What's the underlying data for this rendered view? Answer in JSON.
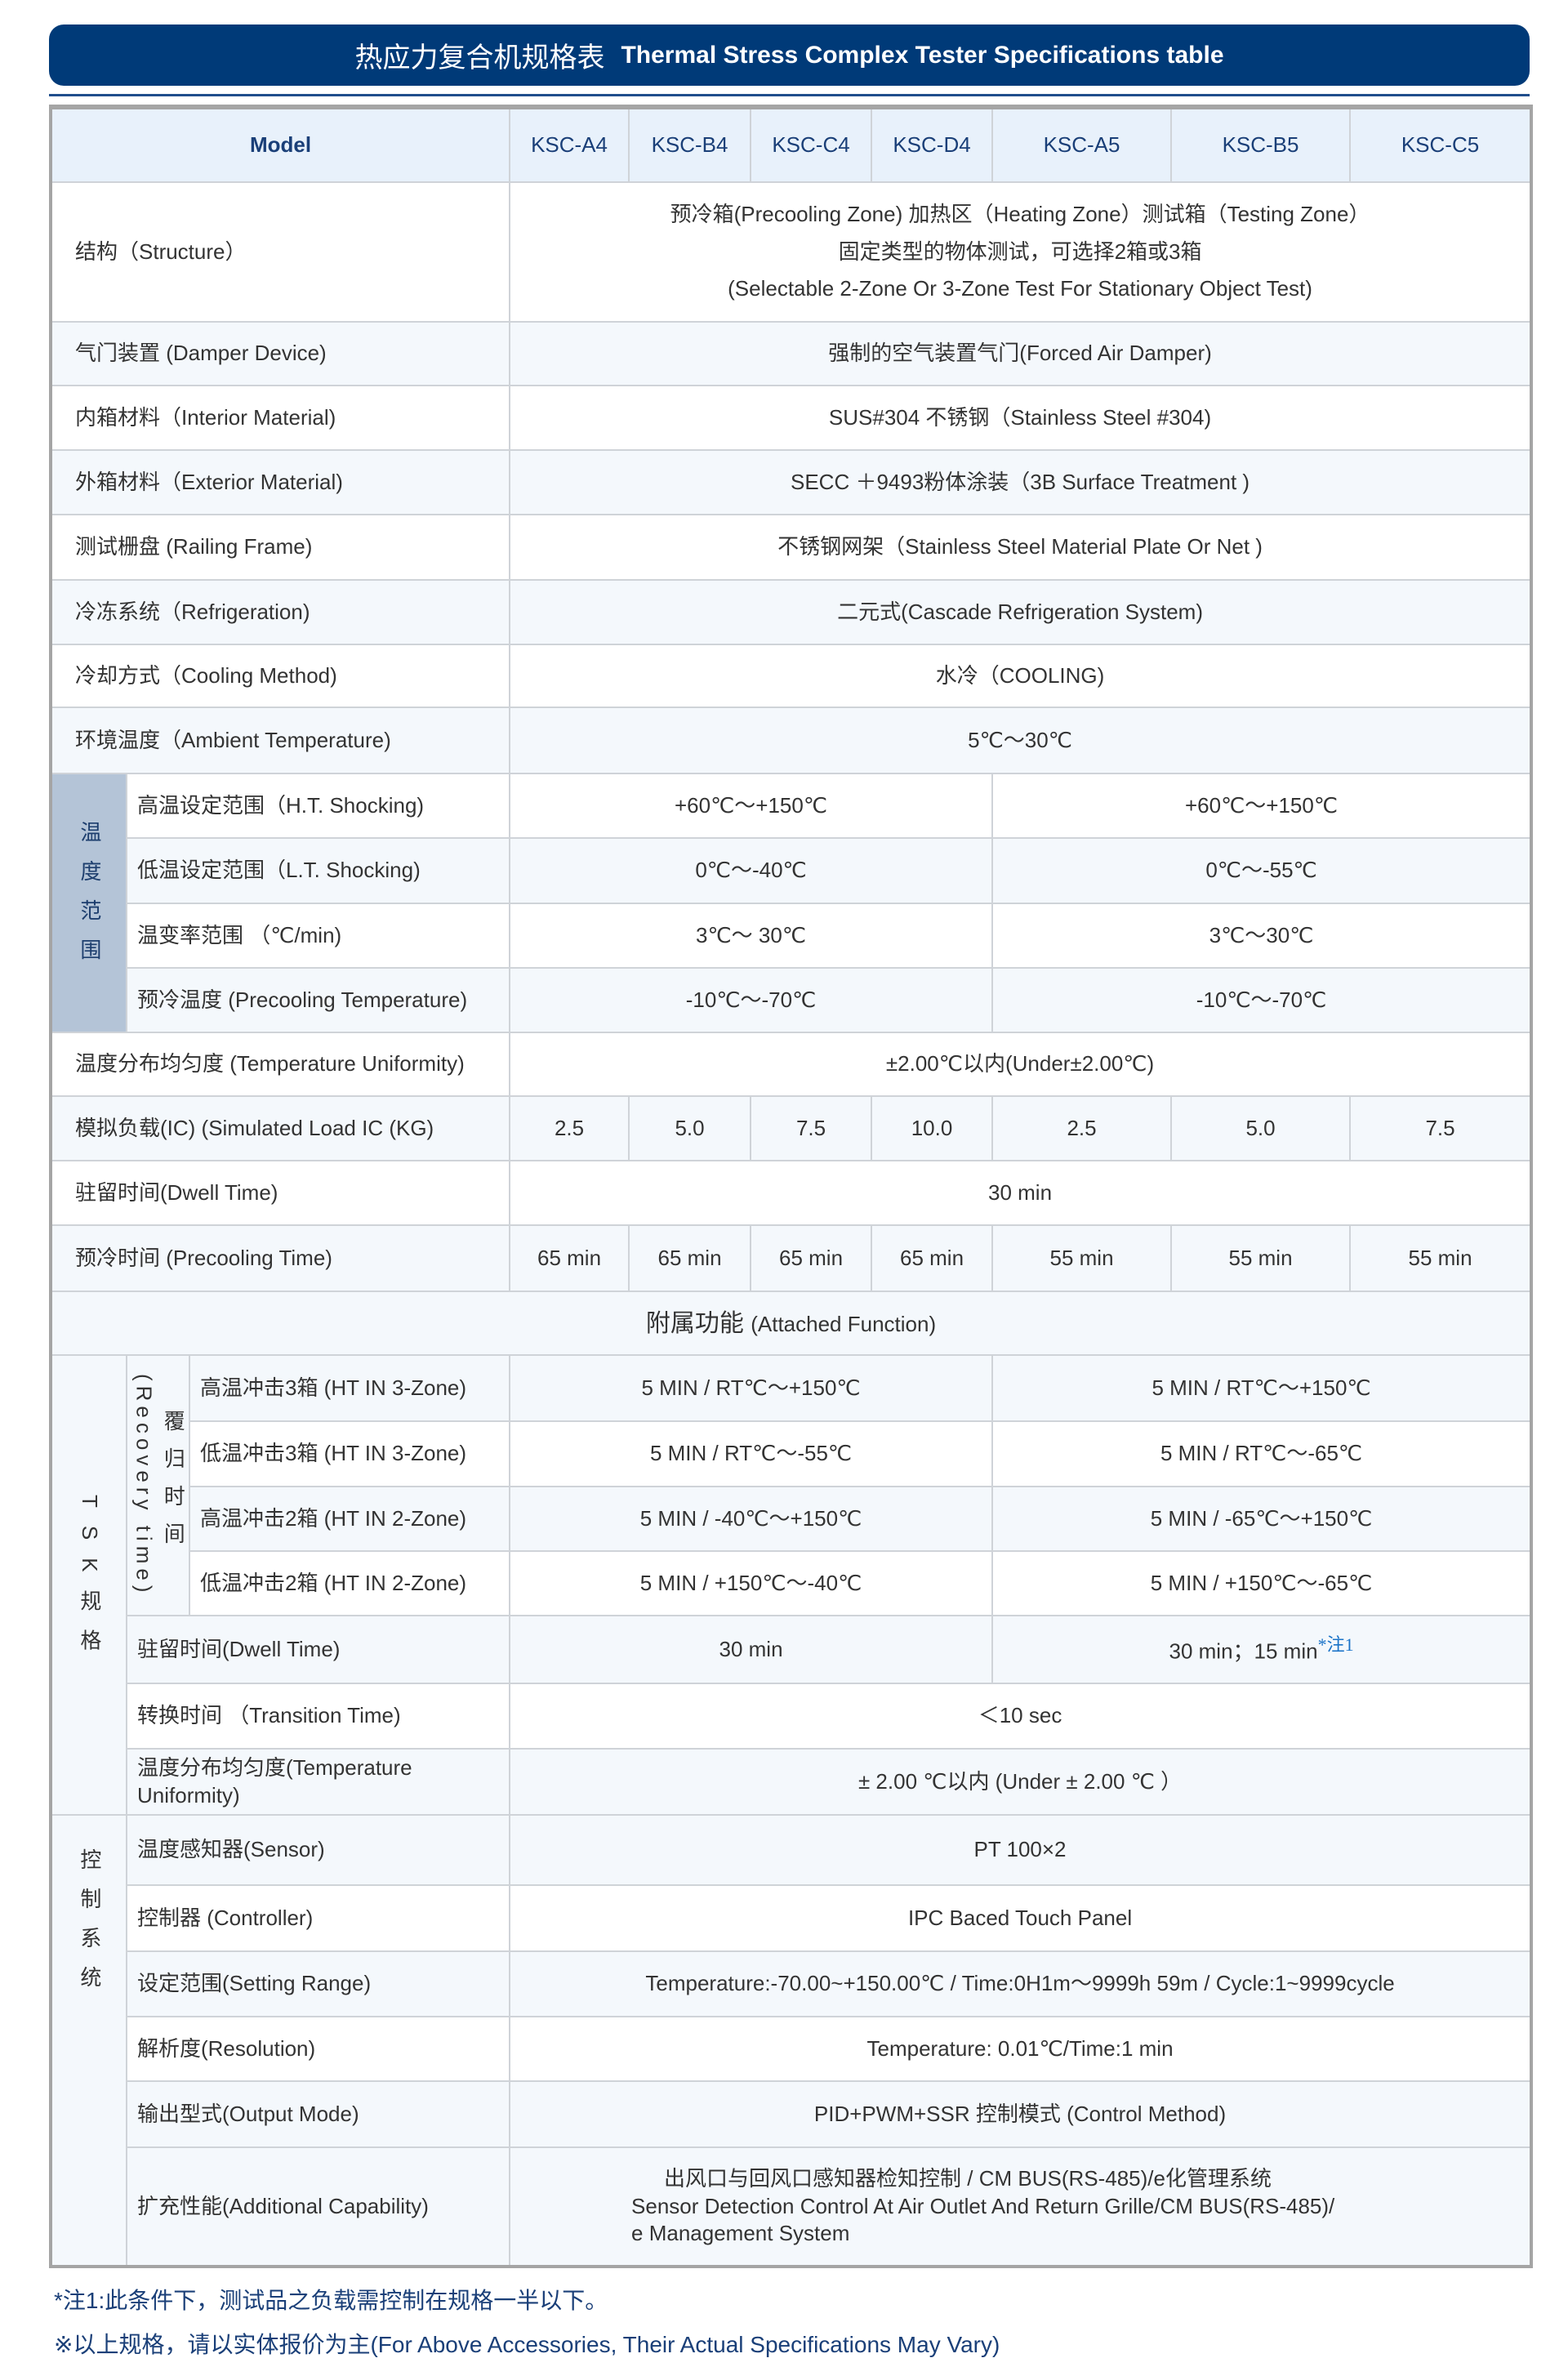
{
  "title": {
    "zh": "热应力复合机规格表",
    "en": "Thermal Stress Complex Tester Specifications table"
  },
  "colors": {
    "title_bg": "#003a78",
    "header_bg": "#e8f1fb",
    "temp_group_bg": "#b4c4d7",
    "note_blue": "#1a73c8"
  },
  "header": {
    "model_label": "Model",
    "models": [
      "KSC-A4",
      "KSC-B4",
      "KSC-C4",
      "KSC-D4",
      "KSC-A5",
      "KSC-B5",
      "KSC-C5"
    ]
  },
  "structure": {
    "label": "结构（Structure）",
    "lines": [
      "预冷箱(Precooling Zone) 加热区（Heating Zone）测试箱（Testing Zone）",
      "固定类型的物体测试，可选择2箱或3箱",
      "(Selectable 2-Zone Or 3-Zone Test For Stationary Object Test)"
    ]
  },
  "damper": {
    "label": "气门装置 (Damper Device)",
    "value": "强制的空气装置气门(Forced Air Damper)"
  },
  "interior": {
    "label": "内箱材料（Interior Material)",
    "value": "SUS#304 不锈钢（Stainless Steel #304)"
  },
  "exterior": {
    "label": "外箱材料（Exterior Material)",
    "value": "SECC ＋9493粉体涂装（3B Surface Treatment )"
  },
  "railing": {
    "label": "测试栅盘 (Railing Frame)",
    "value": "不锈钢网架（Stainless Steel Material Plate Or Net )"
  },
  "refrigeration": {
    "label": "冷冻系统（Refrigeration)",
    "value": "二元式(Cascade Refrigeration System)"
  },
  "cooling": {
    "label": "冷却方式（Cooling Method)",
    "value": "水冷（COOLING)"
  },
  "ambient": {
    "label": "环境温度（Ambient Temperature)",
    "value": "5℃～30℃"
  },
  "temp_range": {
    "group": "温度范围",
    "rows": [
      {
        "label": "高温设定范围（H.T. Shocking)",
        "v4": "+60℃～+150℃",
        "v5": "+60℃～+150℃"
      },
      {
        "label": "低温设定范围（L.T. Shocking)",
        "v4": "0℃～-40℃",
        "v5": "0℃～-55℃"
      },
      {
        "label": "温变率范围 （℃/min)",
        "v4": "3℃～ 30℃",
        "v5": "3℃～30℃"
      },
      {
        "label": "预冷温度 (Precooling Temperature)",
        "v4": "-10℃～-70℃",
        "v5": "-10℃～-70℃"
      }
    ]
  },
  "uniformity": {
    "label": "温度分布均匀度 (Temperature Uniformity)",
    "value": "±2.00℃以内(Under±2.00℃)"
  },
  "load": {
    "label": "模拟负载(IC) (Simulated Load IC (KG)",
    "values": [
      "2.5",
      "5.0",
      "7.5",
      "10.0",
      "2.5",
      "5.0",
      "7.5"
    ]
  },
  "dwell": {
    "label": "驻留时间(Dwell Time)",
    "value": "30 min"
  },
  "precool_time": {
    "label": "预冷时间 (Precooling Time)",
    "values": [
      "65 min",
      "65 min",
      "65 min",
      "65 min",
      "55 min",
      "55 min",
      "55 min"
    ]
  },
  "attached": {
    "zh": "附属功能",
    "en": "(Attached Function)"
  },
  "tsk": {
    "group": "TSK规格",
    "recovery_zh": "覆归时间",
    "recovery_en": "(Recovery time)",
    "rows": [
      {
        "label": "高温冲击3箱 (HT IN 3-Zone)",
        "v4": "5 MIN / RT℃～+150℃",
        "v5": "5 MIN / RT℃～+150℃"
      },
      {
        "label": "低温冲击3箱 (HT IN 3-Zone)",
        "v4": "5 MIN / RT℃～-55℃",
        "v5": "5 MIN / RT℃～-65℃"
      },
      {
        "label": "高温冲击2箱 (HT IN 2-Zone)",
        "v4": "5 MIN / -40℃～+150℃",
        "v5": "5 MIN / -65℃～+150℃"
      },
      {
        "label": "低温冲击2箱 (HT IN 2-Zone)",
        "v4": "5 MIN / +150℃～-40℃",
        "v5": "5 MIN / +150℃～-65℃"
      }
    ],
    "dwell": {
      "label": "驻留时间(Dwell Time)",
      "v4": "30 min",
      "v5": "30 min；15 min",
      "note": "*注1"
    },
    "transition": {
      "label": "转换时间 （Transition Time)",
      "value": "＜10 sec"
    },
    "uniformity": {
      "label": "温度分布均匀度(Temperature Uniformity)",
      "value": "± 2.00 ℃以内 (Under ± 2.00 ℃ ）"
    }
  },
  "control": {
    "group": "控制系统",
    "rows": [
      {
        "label": "温度感知器(Sensor)",
        "value": "PT 100×2"
      },
      {
        "label": "控制器 (Controller)",
        "value": "IPC Baced Touch Panel"
      },
      {
        "label": "设定范围(Setting Range)",
        "value": "Temperature:-70.00~+150.00℃ / Time:0H1m～9999h 59m / Cycle:1~9999cycle"
      },
      {
        "label": "解析度(Resolution)",
        "value": "Temperature: 0.01℃/Time:1 min"
      },
      {
        "label": "输出型式(Output Mode)",
        "value": "PID+PWM+SSR 控制模式 (Control Method)"
      }
    ],
    "additional": {
      "label": "扩充性能(Additional Capability)",
      "lines": [
        "出风口与回风口感知器检知控制 / CM BUS(RS-485)/e化管理系统",
        "Sensor Detection Control At Air Outlet And Return Grille/CM BUS(RS-485)/",
        "e Management System"
      ]
    }
  },
  "notes": [
    "*注1:此条件下，测试品之负载需控制在规格一半以下。",
    "※以上规格，请以实体报价为主(For Above Accessories, Their Actual Specifications May Vary)"
  ]
}
